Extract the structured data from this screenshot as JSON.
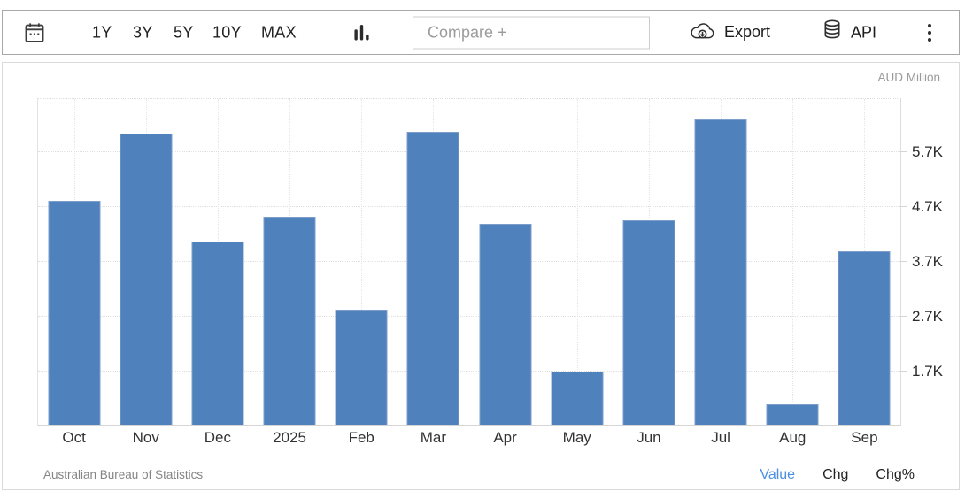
{
  "toolbar": {
    "range_buttons": [
      "1Y",
      "3Y",
      "5Y",
      "10Y",
      "MAX"
    ],
    "compare_placeholder": "Compare +",
    "export_label": "Export",
    "api_label": "API"
  },
  "icons": {
    "calendar": "calendar",
    "chart_type": "column-chart",
    "export": "cloud-download",
    "api": "database",
    "menu": "kebab-menu"
  },
  "chart": {
    "unit_label": "AUD Million",
    "source": "Australian Bureau of Statistics",
    "footer_tabs": [
      {
        "label": "Value",
        "active": true
      },
      {
        "label": "Chg",
        "active": false
      },
      {
        "label": "Chg%",
        "active": false
      }
    ]
  },
  "chart_data": {
    "type": "bar",
    "title": "",
    "xlabel": "",
    "ylabel": "AUD Million",
    "categories": [
      "Oct",
      "Nov",
      "Dec",
      "2025",
      "Feb",
      "Mar",
      "Apr",
      "May",
      "Jun",
      "Jul",
      "Aug",
      "Sep"
    ],
    "values": [
      4810,
      6030,
      4070,
      4520,
      2830,
      6070,
      4390,
      1710,
      4460,
      6290,
      1110,
      3900
    ],
    "y_ticks": [
      {
        "label": "5.7K",
        "value": 5700
      },
      {
        "label": "4.7K",
        "value": 4700
      },
      {
        "label": "3.7K",
        "value": 3700
      },
      {
        "label": "2.7K",
        "value": 2700
      },
      {
        "label": "1.7K",
        "value": 1700
      }
    ],
    "ylim": [
      740,
      6660
    ],
    "grid": true,
    "legend_position": "none",
    "bar_color": "#4f81bc"
  },
  "colors": {
    "bar": "#4f81bc",
    "bar_border": "#7d9dca",
    "accent": "#4a90e2",
    "gridline": "#e0e0e0",
    "text_dark": "#222222",
    "text_muted": "#848484"
  }
}
